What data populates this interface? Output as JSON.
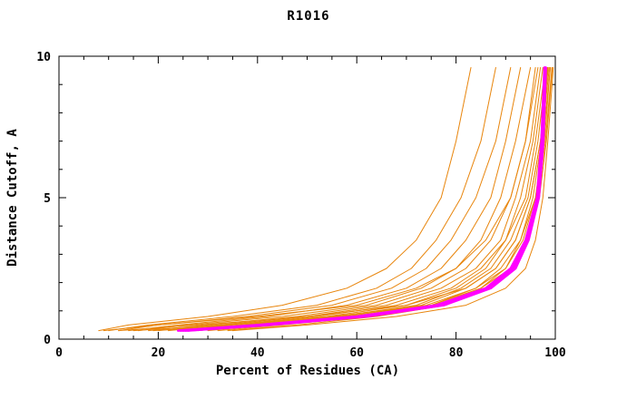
{
  "page": {
    "background": "#ffffff"
  },
  "chart_data": {
    "type": "line",
    "title": "R1016",
    "xlabel": "Percent of Residues (CA)",
    "ylabel": "Distance Cutoff, A",
    "xlim": [
      0,
      100
    ],
    "ylim": [
      0,
      10
    ],
    "x_ticks": [
      0,
      20,
      40,
      60,
      80,
      100
    ],
    "y_ticks": [
      0,
      5,
      10
    ],
    "x_minor_step": 5,
    "y_minor_step": 1,
    "grid": false,
    "legend": "none",
    "frame": "box-with-inward-ticks",
    "colors": {
      "orange": "#e8850c",
      "magenta": "#ff00ff"
    },
    "y_levels": [
      0.3,
      0.5,
      0.8,
      1.2,
      1.8,
      2.5,
      3.5,
      5,
      7,
      9.6
    ],
    "series": [
      {
        "color": "orange",
        "x": [
          8,
          14,
          30,
          45,
          58,
          66,
          72,
          77,
          80,
          83
        ]
      },
      {
        "color": "orange",
        "x": [
          10,
          18,
          35,
          52,
          64,
          71,
          76,
          81,
          85,
          88
        ]
      },
      {
        "color": "orange",
        "x": [
          12,
          20,
          38,
          55,
          67,
          74,
          79,
          84,
          88,
          91
        ]
      },
      {
        "color": "orange",
        "x": [
          14,
          24,
          42,
          58,
          70,
          77,
          82,
          87,
          90,
          93
        ]
      },
      {
        "color": "orange",
        "x": [
          16,
          26,
          45,
          62,
          73,
          80,
          85,
          89,
          92,
          95
        ]
      },
      {
        "color": "orange",
        "x": [
          9,
          20,
          40,
          60,
          72,
          80,
          86,
          91,
          94,
          96
        ]
      },
      {
        "color": "orange",
        "x": [
          18,
          30,
          48,
          64,
          75,
          82,
          87,
          91,
          94,
          96.5
        ]
      },
      {
        "color": "orange",
        "x": [
          20,
          32,
          50,
          66,
          77,
          84,
          89,
          92,
          95,
          97
        ]
      },
      {
        "color": "orange",
        "x": [
          22,
          34,
          52,
          68,
          79,
          85,
          90,
          93,
          95.5,
          97.5
        ]
      },
      {
        "color": "orange",
        "x": [
          24,
          36,
          54,
          70,
          80,
          86,
          90,
          94,
          96,
          98
        ]
      },
      {
        "color": "orange",
        "x": [
          26,
          38,
          56,
          72,
          81,
          87,
          91,
          94.5,
          96.5,
          98.2
        ]
      },
      {
        "color": "orange",
        "x": [
          28,
          40,
          58,
          73,
          82,
          88,
          92,
          95,
          97,
          98.5
        ]
      },
      {
        "color": "orange",
        "x": [
          30,
          42,
          60,
          75,
          84,
          89,
          93,
          95.5,
          97.2,
          98.8
        ]
      },
      {
        "color": "orange",
        "x": [
          32,
          45,
          62,
          76,
          85,
          90,
          93.5,
          96,
          97.5,
          99
        ]
      },
      {
        "color": "orange",
        "x": [
          34,
          48,
          64,
          78,
          86,
          91,
          94,
          96.5,
          98,
          99.3
        ]
      },
      {
        "color": "orange",
        "x": [
          12,
          28,
          50,
          70,
          82,
          88,
          92,
          95,
          97,
          98.6
        ]
      },
      {
        "color": "orange",
        "x": [
          15,
          33,
          55,
          74,
          84,
          90,
          93,
          96,
          97.8,
          99
        ]
      },
      {
        "color": "orange",
        "x": [
          25,
          44,
          63,
          77,
          86,
          91,
          94,
          96.2,
          97.6,
          98.4
        ]
      },
      {
        "color": "orange",
        "x": [
          35,
          50,
          68,
          82,
          90,
          94,
          96,
          97.5,
          98.5,
          99.6
        ]
      },
      {
        "color": "orange",
        "x": [
          19,
          37,
          57,
          75,
          85,
          91,
          94.5,
          96.8,
          98.2,
          99.4
        ]
      },
      {
        "color": "magenta",
        "x": [
          24,
          40,
          60,
          76,
          86,
          91,
          94,
          96.3,
          97.2,
          97.8
        ]
      },
      {
        "color": "magenta",
        "x": [
          25,
          41,
          61,
          77,
          86.5,
          91.5,
          94.3,
          96.5,
          97.4,
          98
        ]
      },
      {
        "color": "magenta",
        "x": [
          26,
          42,
          62,
          77.5,
          87,
          92,
          94.6,
          96.7,
          97.6,
          98.1
        ]
      },
      {
        "color": "magenta",
        "x": [
          25.5,
          41.5,
          61.5,
          77.2,
          86.8,
          91.8,
          94.5,
          96.6,
          97.5,
          98
        ]
      },
      {
        "color": "magenta",
        "x": [
          24.5,
          40.5,
          60.5,
          76.5,
          86.3,
          91.3,
          94.2,
          96.4,
          97.3,
          97.9
        ]
      }
    ]
  }
}
